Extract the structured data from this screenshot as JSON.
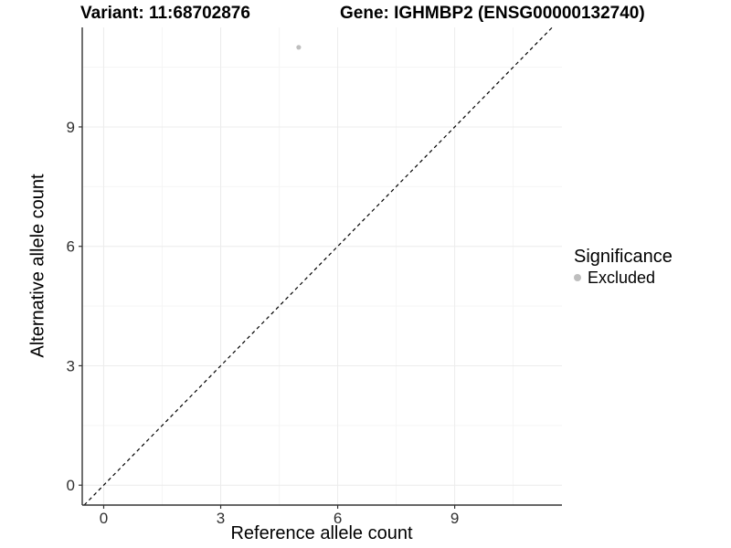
{
  "titles": {
    "left": "Variant: 11:68702876",
    "right": "Gene: IGHMBP2 (ENSG00000132740)"
  },
  "chart_data": {
    "type": "scatter",
    "title": "Variant: 11:68702876  /  Gene: IGHMBP2 (ENSG00000132740)",
    "xlabel": "Reference allele count",
    "ylabel": "Alternative allele count",
    "x_ticks": [
      0,
      3,
      6,
      9
    ],
    "y_ticks": [
      0,
      3,
      6,
      9
    ],
    "x_minor_ticks": [
      1.5,
      4.5,
      7.5,
      10.5
    ],
    "y_minor_ticks": [
      1.5,
      4.5,
      7.5,
      10.5
    ],
    "xlim": [
      -0.55,
      11.75
    ],
    "ylim": [
      -0.5,
      11.5
    ],
    "grid": true,
    "points": [
      {
        "x": 5,
        "y": 11,
        "series": "Excluded"
      }
    ],
    "reference_line": {
      "kind": "identity",
      "slope": 1,
      "intercept": 0,
      "style": "dashed",
      "color": "#000000"
    },
    "legend": {
      "title": "Significance",
      "position": "right",
      "entries": [
        {
          "label": "Excluded",
          "color": "#bebebe"
        }
      ]
    },
    "colors": {
      "point": "#bebebe",
      "axis_line": "#333333",
      "grid_major": "#ececec",
      "grid_minor": "#f5f5f5",
      "tick_text": "#303030"
    }
  }
}
